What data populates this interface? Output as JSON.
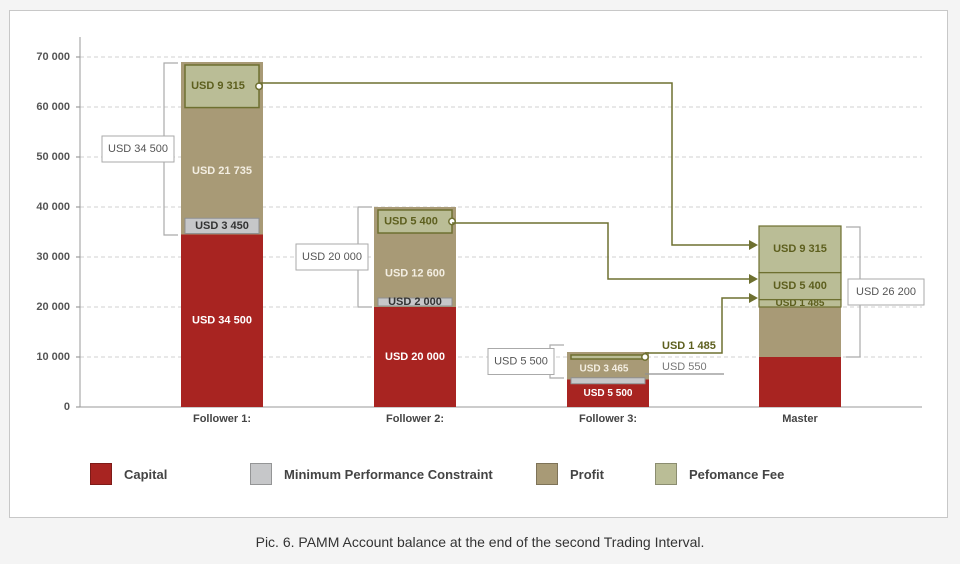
{
  "chart_data": {
    "type": "bar",
    "stacked": true,
    "categories": [
      "Follower 1:",
      "Follower 2:",
      "Follower 3:",
      "Master"
    ],
    "ylim": [
      0,
      70000
    ],
    "yticks": [
      "0",
      "10 000",
      "20 000",
      "30 000",
      "40 000",
      "50 000",
      "60 000",
      "70 000"
    ],
    "ytick_values": [
      0,
      10000,
      20000,
      30000,
      40000,
      50000,
      60000,
      70000
    ],
    "grid": true,
    "series": [
      {
        "name": "Capital",
        "color": "#a82421",
        "values": [
          34500,
          20000,
          5500,
          10000
        ]
      },
      {
        "name": "Minimum Performance Constraint",
        "color": "#c6c7c9",
        "values": [
          3450,
          2000,
          550,
          0
        ]
      },
      {
        "name": "Profit",
        "color": "#a89a76",
        "values": [
          21735,
          12600,
          3465,
          10000
        ]
      },
      {
        "name": "Pefomance Fee",
        "color": "#babd96",
        "values": [
          9315,
          5400,
          1485,
          16200
        ]
      }
    ],
    "master_fee_parts": [
      1485,
      5400,
      9315
    ],
    "segment_labels": {
      "follower1": {
        "capital": "USD 34 500",
        "mpc": "USD 3 450",
        "profit": "USD 21 735",
        "fee": "USD 9 315"
      },
      "follower2": {
        "capital": "USD 20 000",
        "mpc": "USD 2 000",
        "profit": "USD 12 600",
        "fee": "USD 5 400"
      },
      "follower3": {
        "capital": "USD 5 500",
        "mpc": "USD 550",
        "profit": "USD 3 465",
        "fee": "USD 1 485"
      },
      "master": {
        "fee1": "USD 1 485",
        "fee2": "USD 5 400",
        "fee3": "USD 9 315"
      }
    },
    "bracket_labels": {
      "follower1": "USD 34 500",
      "follower2": "USD 20 000",
      "follower3": "USD 5 500",
      "master": "USD 26 200"
    }
  },
  "legend": [
    {
      "label": "Capital",
      "color": "#a82421"
    },
    {
      "label": "Minimum Performance Constraint",
      "color": "#c6c7c9"
    },
    {
      "label": "Profit",
      "color": "#a89a76"
    },
    {
      "label": "Pefomance Fee",
      "color": "#babd96"
    }
  ],
  "caption": "Pic. 6. PAMM Account balance at the end of the second Trading Interval."
}
